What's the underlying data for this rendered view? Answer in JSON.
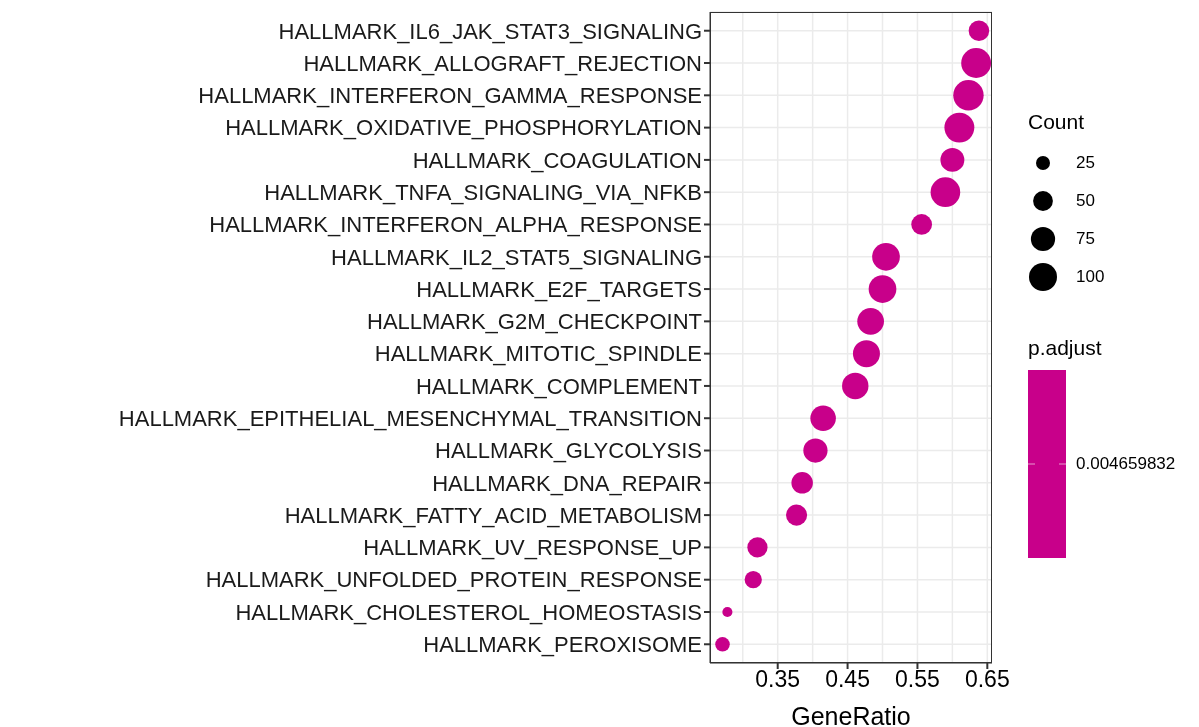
{
  "chart_data": {
    "type": "bubble",
    "orientation": "horizontal",
    "xlabel": "GeneRatio",
    "legend_title": "Count",
    "clabel": "p.adjust",
    "categories": [
      "HALLMARK_IL6_JAK_STAT3_SIGNALING",
      "HALLMARK_ALLOGRAFT_REJECTION",
      "HALLMARK_INTERFERON_GAMMA_RESPONSE",
      "HALLMARK_OXIDATIVE_PHOSPHORYLATION",
      "HALLMARK_COAGULATION",
      "HALLMARK_TNFA_SIGNALING_VIA_NFKB",
      "HALLMARK_INTERFERON_ALPHA_RESPONSE",
      "HALLMARK_IL2_STAT5_SIGNALING",
      "HALLMARK_E2F_TARGETS",
      "HALLMARK_G2M_CHECKPOINT",
      "HALLMARK_MITOTIC_SPINDLE",
      "HALLMARK_COMPLEMENT",
      "HALLMARK_EPITHELIAL_MESENCHYMAL_TRANSITION",
      "HALLMARK_GLYCOLYSIS",
      "HALLMARK_DNA_REPAIR",
      "HALLMARK_FATTY_ACID_METABOLISM",
      "HALLMARK_UV_RESPONSE_UP",
      "HALLMARK_UNFOLDED_PROTEIN_RESPONSE",
      "HALLMARK_CHOLESTEROL_HOMEOSTASIS",
      "HALLMARK_PEROXISOME"
    ],
    "values": [
      0.638,
      0.634,
      0.623,
      0.61,
      0.6,
      0.59,
      0.556,
      0.505,
      0.5,
      0.483,
      0.477,
      0.461,
      0.415,
      0.404,
      0.385,
      0.377,
      0.321,
      0.315,
      0.278,
      0.271
    ],
    "sizes": [
      54,
      114,
      118,
      114,
      73,
      112,
      55,
      98,
      98,
      91,
      93,
      89,
      83,
      75,
      59,
      57,
      52,
      38,
      13,
      27
    ],
    "size_legend": [
      25,
      50,
      75,
      100
    ],
    "color": "#c8008a",
    "annotations": [
      "0.004659832"
    ],
    "xlim": [
      0.2531,
      0.6567
    ],
    "xticks": [
      0.35,
      0.45,
      0.55,
      0.65
    ],
    "grid": true
  }
}
